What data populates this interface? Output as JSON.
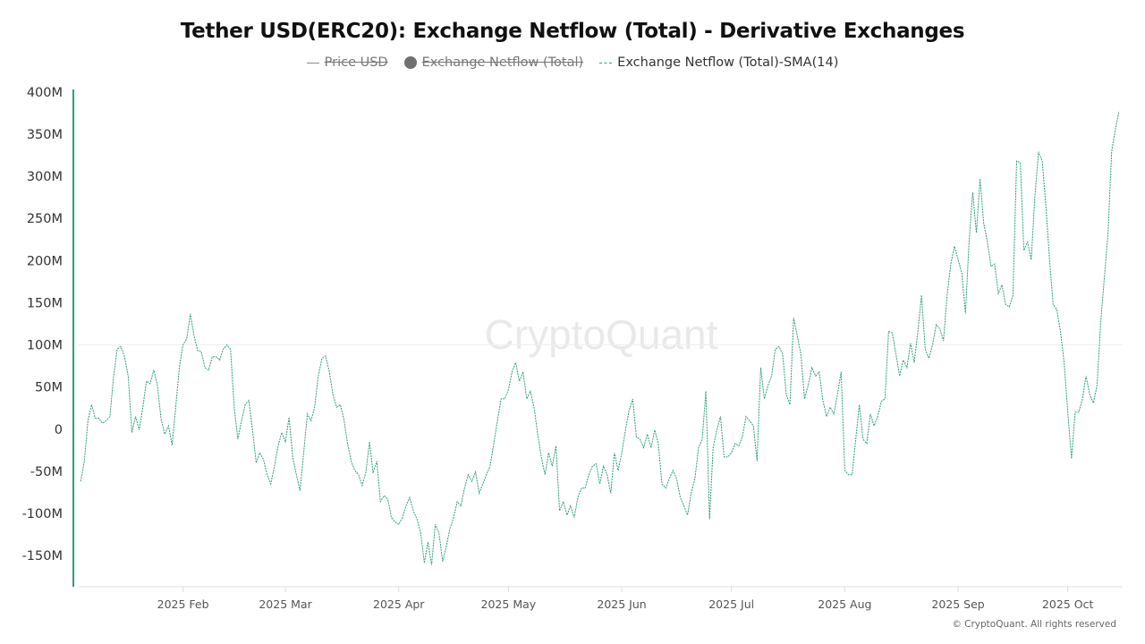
{
  "chart_data": {
    "type": "line",
    "title": "Tether USD(ERC20): Exchange Netflow (Total) - Derivative Exchanges",
    "legend": [
      {
        "name": "Price USD",
        "visible": false,
        "marker": "line"
      },
      {
        "name": "Exchange Netflow (Total)",
        "visible": false,
        "marker": "dot"
      },
      {
        "name": "Exchange Netflow (Total)-SMA(14)",
        "visible": true,
        "marker": "dashed-line"
      }
    ],
    "legend_placement": "top-center",
    "xlabel": "",
    "ylabel": "",
    "xlim": [
      "2025-01-02",
      "2025-10-16"
    ],
    "ylim": [
      -187,
      403
    ],
    "y_unit": "M",
    "y_ticks": [
      -150,
      -100,
      -50,
      0,
      50,
      100,
      150,
      200,
      250,
      300,
      350,
      400
    ],
    "y_tick_labels": [
      "-150M",
      "-100M",
      "-50M",
      "0",
      "50M",
      "100M",
      "150M",
      "200M",
      "250M",
      "300M",
      "350M",
      "400M"
    ],
    "x_ticks": [
      "2025-02-01",
      "2025-03-01",
      "2025-04-01",
      "2025-05-01",
      "2025-06-01",
      "2025-07-01",
      "2025-08-01",
      "2025-09-01",
      "2025-10-01"
    ],
    "x_tick_labels": [
      "2025 Feb",
      "2025 Mar",
      "2025 Apr",
      "2025 May",
      "2025 Jun",
      "2025 Jul",
      "2025 Aug",
      "2025 Sep",
      "2025 Oct"
    ],
    "grid": "horizontal line at 100M only (faint)",
    "series": [
      {
        "name": "Exchange Netflow (Total)-SMA(14)",
        "color": "#2e9e7e",
        "by_month": {
          "2025-01": {
            "first_day": 4,
            "values": [
              -62,
              -38,
              10,
              29,
              13,
              13,
              7,
              10,
              15,
              63,
              95,
              98,
              86,
              63,
              -4,
              15,
              -1,
              26,
              57,
              54,
              70,
              52,
              12,
              -6,
              4,
              -19,
              26,
              73
            ]
          },
          "2025-02": {
            "first_day": 1,
            "values": [
              100,
              107,
              137,
              111,
              93,
              92,
              73,
              70,
              86,
              86,
              82,
              95,
              100,
              95,
              26,
              -12,
              10,
              29,
              34,
              -1,
              -40,
              -28,
              -36,
              -54,
              -65,
              -44,
              -20,
              -4
            ]
          },
          "2025-03": {
            "first_day": 1,
            "values": [
              -15,
              14,
              -33,
              -54,
              -73,
              -28,
              18,
              10,
              26,
              63,
              84,
              87,
              68,
              41,
              26,
              29,
              12,
              -17,
              -38,
              -49,
              -54,
              -67,
              -51,
              -15,
              -52,
              -38,
              -86,
              -79,
              -83,
              -105,
              -110
            ]
          },
          "2025-04": {
            "first_day": 1,
            "values": [
              -113,
              -105,
              -91,
              -81,
              -97,
              -107,
              -123,
              -159,
              -134,
              -161,
              -113,
              -123,
              -157,
              -139,
              -118,
              -105,
              -86,
              -91,
              -70,
              -54,
              -62,
              -51,
              -76,
              -65,
              -54,
              -44,
              -17,
              10,
              36,
              36
            ]
          },
          "2025-05": {
            "first_day": 1,
            "values": [
              47,
              68,
              79,
              57,
              68,
              36,
              45,
              26,
              -6,
              -33,
              -54,
              -28,
              -44,
              -20,
              -97,
              -86,
              -102,
              -91,
              -105,
              -81,
              -70,
              -70,
              -54,
              -44,
              -41,
              -65,
              -44,
              -54,
              -76,
              -28,
              -49
            ]
          },
          "2025-06": {
            "first_day": 1,
            "values": [
              -28,
              -1,
              22,
              36,
              -9,
              -12,
              -22,
              -6,
              -22,
              -1,
              -17,
              -65,
              -70,
              -59,
              -49,
              -59,
              -81,
              -91,
              -102,
              -76,
              -59,
              -22,
              -12,
              45,
              -107,
              -22,
              -1,
              15,
              -33,
              -33
            ]
          },
          "2025-07": {
            "first_day": 1,
            "values": [
              -28,
              -17,
              -20,
              -9,
              15,
              10,
              4,
              -38,
              73,
              36,
              52,
              63,
              95,
              98,
              89,
              41,
              29,
              132,
              111,
              89,
              36,
              52,
              73,
              63,
              68,
              34,
              15,
              26,
              18,
              41,
              68
            ]
          },
          "2025-08": {
            "first_day": 1,
            "values": [
              -49,
              -54,
              -54,
              -12,
              29,
              -12,
              -17,
              18,
              4,
              15,
              33,
              36,
              116,
              114,
              89,
              63,
              82,
              73,
              102,
              79,
              116,
              159,
              95,
              84,
              100,
              124,
              119,
              105,
              159,
              196,
              217
            ]
          },
          "2025-09": {
            "first_day": 1,
            "values": [
              201,
              185,
              137,
              222,
              281,
              233,
              297,
              244,
              222,
              193,
              196,
              161,
              171,
              148,
              145,
              159,
              318,
              316,
              212,
              222,
              201,
              276,
              329,
              318,
              265,
              201,
              148,
              142,
              116,
              79
            ]
          },
          "2025-10": {
            "first_day": 1,
            "values": [
              20,
              -35,
              20,
              20,
              36,
              63,
              41,
              31,
              52,
              127,
              180,
              233,
              329,
              355,
              377
            ]
          }
        }
      }
    ],
    "watermark": "CryptoQuant",
    "axis_color": "#2e9e7e"
  },
  "footer": {
    "copyright": "© CryptoQuant. All rights reserved"
  }
}
